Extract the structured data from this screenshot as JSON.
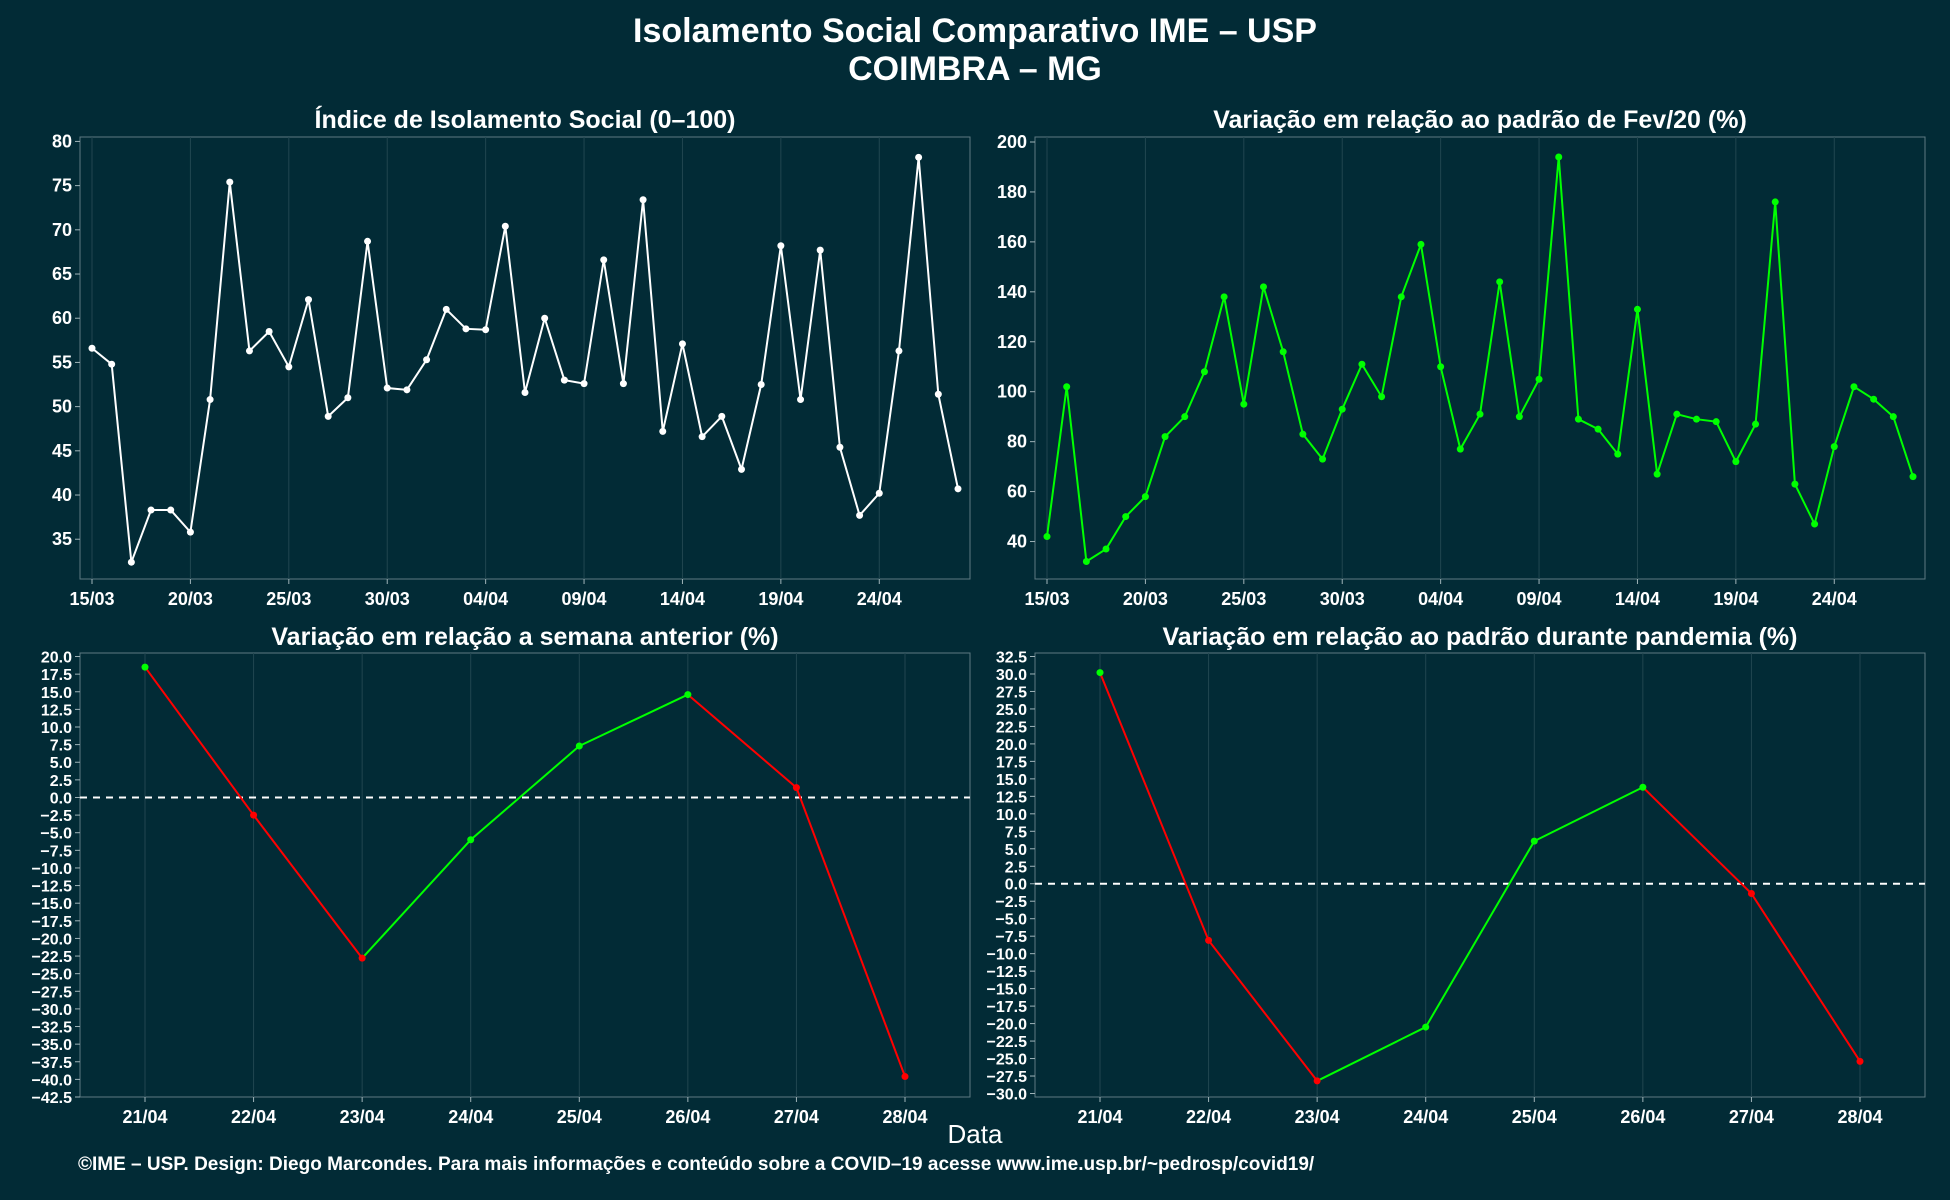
{
  "page": {
    "title_line1": "Isolamento Social Comparativo IME – USP",
    "title_line2": "COIMBRA – MG",
    "xlabel": "Data",
    "footer": "©IME – USP. Design: Diego Marcondes. Para mais informações e conteúdo sobre a COVID–19 acesse www.ime.usp.br/~pedrosp/covid19/"
  },
  "colors": {
    "background": "#022b36",
    "white": "#ffffff",
    "green": "#00ff00",
    "red": "#ff0000",
    "grid": "#214650"
  },
  "chart_data": [
    {
      "type": "line",
      "title": "Índice de Isolamento Social (0–100)",
      "x": [
        "15/03",
        "16/03",
        "17/03",
        "18/03",
        "19/03",
        "20/03",
        "21/03",
        "22/03",
        "23/03",
        "24/03",
        "25/03",
        "26/03",
        "27/03",
        "28/03",
        "29/03",
        "30/03",
        "31/03",
        "01/04",
        "02/04",
        "03/04",
        "04/04",
        "05/04",
        "06/04",
        "07/04",
        "08/04",
        "09/04",
        "10/04",
        "11/04",
        "12/04",
        "13/04",
        "14/04",
        "15/04",
        "16/04",
        "17/04",
        "18/04",
        "19/04",
        "20/04",
        "21/04",
        "22/04",
        "23/04",
        "24/04",
        "25/04",
        "26/04",
        "27/04",
        "28/04"
      ],
      "xticks": [
        "15/03",
        "20/03",
        "25/03",
        "30/03",
        "04/04",
        "09/04",
        "14/04",
        "19/04",
        "24/04"
      ],
      "series": [
        {
          "values": [
            56.6,
            54.8,
            32.4,
            38.3,
            38.3,
            35.8,
            50.8,
            75.4,
            56.3,
            58.5,
            54.5,
            62.1,
            48.9,
            51.0,
            68.7,
            52.1,
            51.9,
            55.3,
            61.0,
            58.8,
            58.7,
            70.4,
            51.6,
            60.0,
            53.0,
            52.6,
            66.6,
            52.6,
            73.4,
            47.2,
            57.1,
            46.6,
            48.9,
            42.9,
            52.5,
            68.2,
            50.8,
            67.7,
            45.4,
            37.7,
            40.2,
            56.3,
            78.2,
            51.4,
            40.7
          ]
        }
      ],
      "ylim": [
        30.5,
        80.5
      ],
      "yticks": [
        35,
        40,
        45,
        50,
        55,
        60,
        65,
        70,
        75,
        80
      ],
      "color": "#ffffff"
    },
    {
      "type": "line",
      "title": "Variação em relação ao padrão de Fev/20 (%)",
      "x": [
        "15/03",
        "16/03",
        "17/03",
        "18/03",
        "19/03",
        "20/03",
        "21/03",
        "22/03",
        "23/03",
        "24/03",
        "25/03",
        "26/03",
        "27/03",
        "28/03",
        "29/03",
        "30/03",
        "31/03",
        "01/04",
        "02/04",
        "03/04",
        "04/04",
        "05/04",
        "06/04",
        "07/04",
        "08/04",
        "09/04",
        "10/04",
        "11/04",
        "12/04",
        "13/04",
        "14/04",
        "15/04",
        "16/04",
        "17/04",
        "18/04",
        "19/04",
        "20/04",
        "21/04",
        "22/04",
        "23/04",
        "24/04",
        "25/04",
        "26/04",
        "27/04",
        "28/04"
      ],
      "xticks": [
        "15/03",
        "20/03",
        "25/03",
        "30/03",
        "04/04",
        "09/04",
        "14/04",
        "19/04",
        "24/04"
      ],
      "series": [
        {
          "values": [
            42,
            102,
            32,
            37,
            50,
            58,
            82,
            90,
            108,
            138,
            95,
            142,
            116,
            83,
            73,
            93,
            111,
            98,
            138,
            159,
            110,
            77,
            91,
            144,
            90,
            105,
            194,
            89,
            85,
            75,
            133,
            67,
            91,
            89,
            88,
            72,
            87,
            176,
            63,
            47,
            78,
            102,
            97,
            90,
            66
          ]
        }
      ],
      "ylim": [
        25,
        202
      ],
      "yticks": [
        40,
        60,
        80,
        100,
        120,
        140,
        160,
        180,
        200
      ],
      "color": "#00ff00"
    },
    {
      "type": "line",
      "title": "Variação em relação a semana anterior (%)",
      "x": [
        "21/04",
        "22/04",
        "23/04",
        "24/04",
        "25/04",
        "26/04",
        "27/04",
        "28/04"
      ],
      "xticks": [
        "21/04",
        "22/04",
        "23/04",
        "24/04",
        "25/04",
        "26/04",
        "27/04",
        "28/04"
      ],
      "series": [
        {
          "values": [
            18.5,
            -2.5,
            -22.8,
            -6.0,
            7.3,
            14.6,
            1.4,
            -39.6
          ]
        }
      ],
      "ylim": [
        -42.5,
        20.5
      ],
      "ytick_labels": [
        "20.0",
        "17.5",
        "15.0",
        "12.5",
        "10.0",
        "7.5",
        "5.0",
        "2.5",
        "0.0",
        "−2.5",
        "−5.0",
        "−7.5",
        "−10.0",
        "−12.5",
        "−15.0",
        "−17.5",
        "−20.0",
        "−22.5",
        "−25.0",
        "−27.5",
        "−30.0",
        "−32.5",
        "−35.0",
        "−37.5",
        "−40.0",
        "−42.5"
      ],
      "reference_line": 0,
      "colors": {
        "increase": "#00ff00",
        "decrease": "#ff0000"
      }
    },
    {
      "type": "line",
      "title": "Variação em relação ao padrão durante pandemia (%)",
      "x": [
        "21/04",
        "22/04",
        "23/04",
        "24/04",
        "25/04",
        "26/04",
        "27/04",
        "28/04"
      ],
      "xticks": [
        "21/04",
        "22/04",
        "23/04",
        "24/04",
        "25/04",
        "26/04",
        "27/04",
        "28/04"
      ],
      "series": [
        {
          "values": [
            30.2,
            -8.1,
            -28.2,
            -20.5,
            6.1,
            13.8,
            -1.4,
            -25.4
          ]
        }
      ],
      "ylim": [
        -30.5,
        33.0
      ],
      "ytick_labels": [
        "32.5",
        "30.0",
        "27.5",
        "25.0",
        "22.5",
        "20.0",
        "17.5",
        "15.0",
        "12.5",
        "10.0",
        "7.5",
        "5.0",
        "2.5",
        "0.0",
        "−2.5",
        "−5.0",
        "−7.5",
        "−10.0",
        "−12.5",
        "−15.0",
        "−17.5",
        "−20.0",
        "−22.5",
        "−25.0",
        "−27.5",
        "−30.0"
      ],
      "reference_line": 0,
      "colors": {
        "increase": "#00ff00",
        "decrease": "#ff0000"
      }
    }
  ]
}
